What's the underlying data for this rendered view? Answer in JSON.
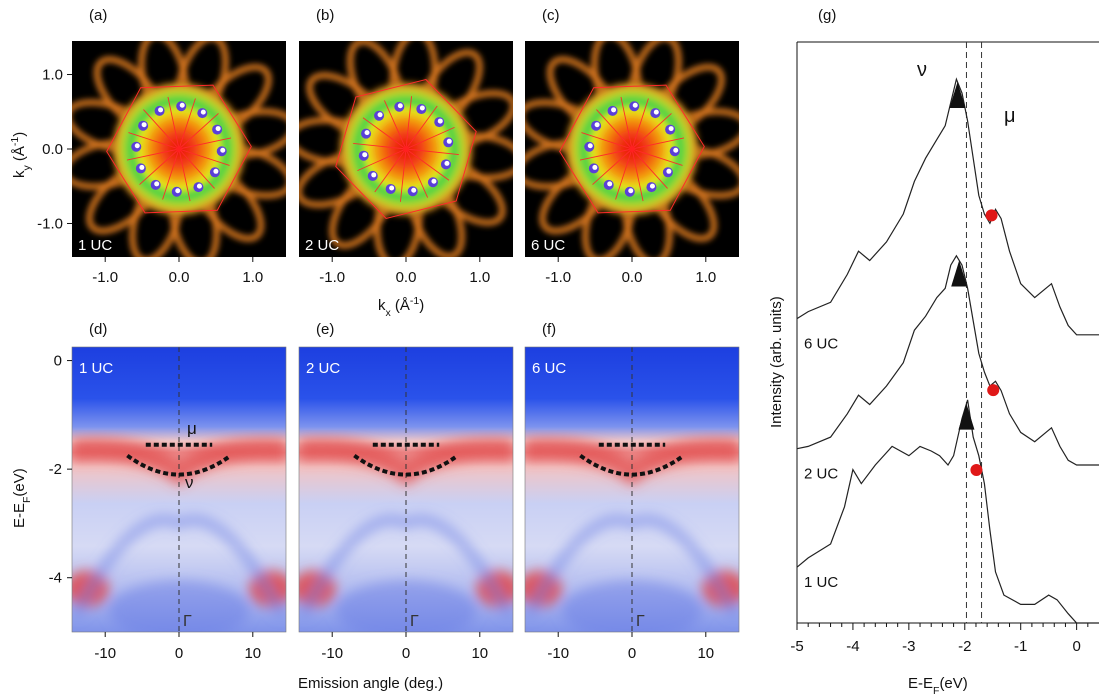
{
  "panels": [
    {
      "id": "a",
      "label": "(a)",
      "tag": "1 UC",
      "rotation": 18
    },
    {
      "id": "b",
      "label": "(b)",
      "tag": "2 UC",
      "rotation": 6
    },
    {
      "id": "c",
      "label": "(c)",
      "tag": "6 UC",
      "rotation": 18
    }
  ],
  "arpes_panels": [
    {
      "id": "d",
      "label": "(d)",
      "tag": "1 UC"
    },
    {
      "id": "e",
      "label": "(e)",
      "tag": "2 UC"
    },
    {
      "id": "f",
      "label": "(f)",
      "tag": "6 UC"
    }
  ],
  "fermi_surface_axes": {
    "x_ticks": [
      "-1.0",
      "0.0",
      "1.0"
    ],
    "x_tick_values": [
      -1.0,
      0.0,
      1.0
    ],
    "y_ticks": [
      "1.0",
      "0.0",
      "-1.0"
    ],
    "y_tick_values": [
      1.0,
      0.0,
      -1.0
    ],
    "xlabel": "kx (Å-1)",
    "ylabel": "ky (Å-1)",
    "range": [
      -1.45,
      1.45
    ]
  },
  "arpes_axes": {
    "x_ticks": [
      "-10",
      "0",
      "10"
    ],
    "x_tick_values": [
      -10,
      0,
      10
    ],
    "y_ticks": [
      "0",
      "-2",
      "-4"
    ],
    "y_tick_values": [
      0,
      -2,
      -4
    ],
    "xlabel": "Emission angle (deg.)",
    "ylabel": "E-EF(eV)",
    "xrange": [
      -14.5,
      14.5
    ],
    "yrange": [
      -5,
      0.25
    ],
    "gamma_label": "Γ",
    "mu_label": "μ",
    "nu_label": "ν"
  },
  "edc_panel": {
    "label": "(g)",
    "ylabel": "Intensity (arb. units)",
    "xlabel": "E-EF(eV)",
    "x_ticks": [
      "-5",
      "-4",
      "-3",
      "-2",
      "-1",
      "0"
    ],
    "x_tick_values": [
      -5,
      -4,
      -3,
      -2,
      -1,
      0
    ],
    "xrange": [
      -5,
      0.4
    ],
    "dashed_lines": [
      -1.97,
      -1.7
    ],
    "mu_label": "μ",
    "nu_label": "ν",
    "curves": [
      {
        "name": "6 UC",
        "offset": 0.62,
        "points": [
          [
            -5,
            0.035
          ],
          [
            -4.8,
            0.05
          ],
          [
            -4.4,
            0.07
          ],
          [
            -4.1,
            0.13
          ],
          [
            -3.9,
            0.18
          ],
          [
            -3.7,
            0.16
          ],
          [
            -3.4,
            0.2
          ],
          [
            -3.1,
            0.26
          ],
          [
            -2.9,
            0.33
          ],
          [
            -2.7,
            0.38
          ],
          [
            -2.5,
            0.42
          ],
          [
            -2.35,
            0.45
          ],
          [
            -2.25,
            0.5
          ],
          [
            -2.15,
            0.55
          ],
          [
            -2.05,
            0.52
          ],
          [
            -1.95,
            0.46
          ],
          [
            -1.85,
            0.38
          ],
          [
            -1.75,
            0.3
          ],
          [
            -1.65,
            0.26
          ],
          [
            -1.55,
            0.24
          ],
          [
            -1.45,
            0.27
          ],
          [
            -1.35,
            0.25
          ],
          [
            -1.2,
            0.18
          ],
          [
            -1.0,
            0.11
          ],
          [
            -0.75,
            0.08
          ],
          [
            -0.55,
            0.1
          ],
          [
            -0.45,
            0.11
          ],
          [
            -0.3,
            0.06
          ],
          [
            -0.15,
            0.02
          ],
          [
            0.0,
            0.0
          ],
          [
            0.4,
            0.0
          ]
        ]
      },
      {
        "name": "2 UC",
        "offset": 0.34,
        "points": [
          [
            -5,
            0.035
          ],
          [
            -4.8,
            0.04
          ],
          [
            -4.4,
            0.06
          ],
          [
            -4.1,
            0.11
          ],
          [
            -3.9,
            0.15
          ],
          [
            -3.7,
            0.13
          ],
          [
            -3.4,
            0.17
          ],
          [
            -3.1,
            0.22
          ],
          [
            -2.9,
            0.29
          ],
          [
            -2.7,
            0.32
          ],
          [
            -2.5,
            0.36
          ],
          [
            -2.35,
            0.38
          ],
          [
            -2.25,
            0.43
          ],
          [
            -2.15,
            0.45
          ],
          [
            -2.05,
            0.43
          ],
          [
            -1.95,
            0.38
          ],
          [
            -1.85,
            0.31
          ],
          [
            -1.75,
            0.24
          ],
          [
            -1.65,
            0.2
          ],
          [
            -1.55,
            0.17
          ],
          [
            -1.45,
            0.18
          ],
          [
            -1.35,
            0.16
          ],
          [
            -1.2,
            0.11
          ],
          [
            -1.0,
            0.07
          ],
          [
            -0.75,
            0.05
          ],
          [
            -0.55,
            0.07
          ],
          [
            -0.45,
            0.08
          ],
          [
            -0.3,
            0.04
          ],
          [
            -0.15,
            0.01
          ],
          [
            0.0,
            0.0
          ],
          [
            0.4,
            0.0
          ]
        ]
      },
      {
        "name": "1 UC",
        "offset": 0.0,
        "points": [
          [
            -5,
            0.12
          ],
          [
            -4.8,
            0.14
          ],
          [
            -4.4,
            0.17
          ],
          [
            -4.15,
            0.25
          ],
          [
            -4.0,
            0.33
          ],
          [
            -3.85,
            0.3
          ],
          [
            -3.6,
            0.34
          ],
          [
            -3.3,
            0.38
          ],
          [
            -3.0,
            0.36
          ],
          [
            -2.8,
            0.38
          ],
          [
            -2.6,
            0.37
          ],
          [
            -2.45,
            0.36
          ],
          [
            -2.3,
            0.34
          ],
          [
            -2.2,
            0.36
          ],
          [
            -2.05,
            0.44
          ],
          [
            -1.95,
            0.48
          ],
          [
            -1.85,
            0.4
          ],
          [
            -1.75,
            0.36
          ],
          [
            -1.65,
            0.3
          ],
          [
            -1.55,
            0.2
          ],
          [
            -1.45,
            0.11
          ],
          [
            -1.3,
            0.06
          ],
          [
            -1.0,
            0.04
          ],
          [
            -0.75,
            0.04
          ],
          [
            -0.5,
            0.06
          ],
          [
            -0.35,
            0.05
          ],
          [
            -0.15,
            0.02
          ],
          [
            0.0,
            0.0
          ],
          [
            0.4,
            0.0
          ]
        ]
      }
    ],
    "nu_markers": [
      -2.13,
      -2.1,
      -1.97
    ],
    "mu_markers": [
      -1.45,
      -1.42,
      -1.72
    ]
  }
}
